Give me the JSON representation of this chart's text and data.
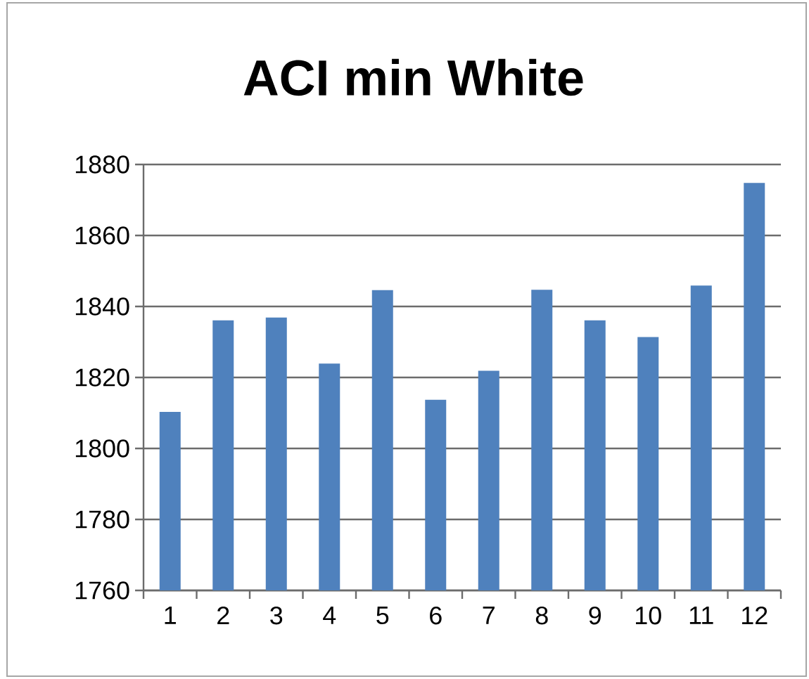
{
  "chart_data": {
    "type": "bar",
    "title": "ACI min White",
    "categories": [
      "1",
      "2",
      "3",
      "4",
      "5",
      "6",
      "7",
      "8",
      "9",
      "10",
      "11",
      "12"
    ],
    "values": [
      1810.3,
      1836.1,
      1836.9,
      1823.9,
      1844.6,
      1813.7,
      1821.9,
      1844.7,
      1836.1,
      1831.4,
      1845.9,
      1874.8
    ],
    "color": "#4f81bd",
    "ylim": [
      1760,
      1880
    ],
    "yticks": [
      1760,
      1780,
      1800,
      1820,
      1840,
      1860,
      1880
    ],
    "grid": "y"
  }
}
